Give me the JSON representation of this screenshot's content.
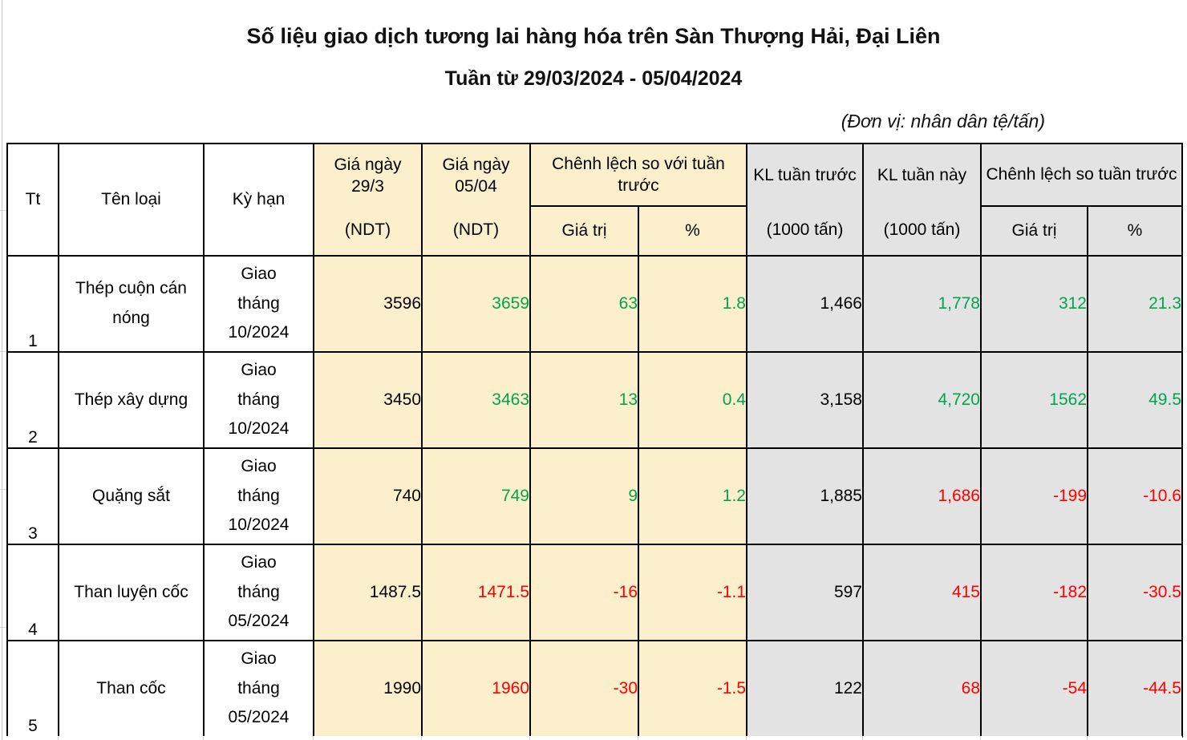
{
  "title": "Số liệu giao dịch tương lai hàng hóa trên Sàn Thượng Hải, Đại Liên",
  "subtitle": "Tuần từ 29/03/2024 - 05/04/2024",
  "unit_note": "(Đơn vị: nhân dân tệ/tấn)",
  "columns": {
    "tt": "Tt",
    "ten_loai": "Tên loại",
    "ky_han": "Kỳ hạn",
    "gia_ngay_29": "Giá ngày 29/3",
    "gia_ngay_05": "Giá ngày 05/04",
    "ndt": "(NDT)",
    "chenh_lech_voi_tuan_truoc": "Chênh lệch so với tuần trước",
    "gia_tri": "Giá trị",
    "pct": "%",
    "kl_tuan_truoc": "KL tuần trước",
    "kl_tuan_nay": "KL tuần này",
    "kl_unit": "(1000 tấn)",
    "chenh_lech_so_tuan_truoc": "Chênh lệch so tuần trước"
  },
  "rows": [
    {
      "tt": "1",
      "name": "Thép cuộn cán nóng",
      "term": "Giao tháng 10/2024",
      "price_29": {
        "v": "3596",
        "c": "black"
      },
      "price_05": {
        "v": "3659",
        "c": "green"
      },
      "diff_val": {
        "v": "63",
        "c": "green"
      },
      "diff_pct": {
        "v": "1.8",
        "c": "green"
      },
      "kl_prev": {
        "v": "1,466",
        "c": "black"
      },
      "kl_this": {
        "v": "1,778",
        "c": "green"
      },
      "kldiff_val": {
        "v": "312",
        "c": "green"
      },
      "kldiff_pct": {
        "v": "21.3",
        "c": "green"
      }
    },
    {
      "tt": "2",
      "name": "Thép xây dựng",
      "term": "Giao tháng 10/2024",
      "price_29": {
        "v": "3450",
        "c": "black"
      },
      "price_05": {
        "v": "3463",
        "c": "green"
      },
      "diff_val": {
        "v": "13",
        "c": "green"
      },
      "diff_pct": {
        "v": "0.4",
        "c": "green"
      },
      "kl_prev": {
        "v": "3,158",
        "c": "black"
      },
      "kl_this": {
        "v": "4,720",
        "c": "green"
      },
      "kldiff_val": {
        "v": "1562",
        "c": "green"
      },
      "kldiff_pct": {
        "v": "49.5",
        "c": "green"
      }
    },
    {
      "tt": "3",
      "name": "Quặng sắt",
      "term": "Giao tháng 10/2024",
      "price_29": {
        "v": "740",
        "c": "black"
      },
      "price_05": {
        "v": "749",
        "c": "green"
      },
      "diff_val": {
        "v": "9",
        "c": "green"
      },
      "diff_pct": {
        "v": "1.2",
        "c": "green"
      },
      "kl_prev": {
        "v": "1,885",
        "c": "black"
      },
      "kl_this": {
        "v": "1,686",
        "c": "red"
      },
      "kldiff_val": {
        "v": "-199",
        "c": "red"
      },
      "kldiff_pct": {
        "v": "-10.6",
        "c": "red"
      }
    },
    {
      "tt": "4",
      "name": "Than luyện cốc",
      "term": "Giao tháng 05/2024",
      "price_29": {
        "v": "1487.5",
        "c": "black"
      },
      "price_05": {
        "v": "1471.5",
        "c": "red"
      },
      "diff_val": {
        "v": "-16",
        "c": "red"
      },
      "diff_pct": {
        "v": "-1.1",
        "c": "red"
      },
      "kl_prev": {
        "v": "597",
        "c": "black"
      },
      "kl_this": {
        "v": "415",
        "c": "red"
      },
      "kldiff_val": {
        "v": "-182",
        "c": "red"
      },
      "kldiff_pct": {
        "v": "-30.5",
        "c": "red"
      }
    },
    {
      "tt": "5",
      "name": "Than cốc",
      "term": "Giao tháng 05/2024",
      "price_29": {
        "v": "1990",
        "c": "black"
      },
      "price_05": {
        "v": "1960",
        "c": "red"
      },
      "diff_val": {
        "v": "-30",
        "c": "red"
      },
      "diff_pct": {
        "v": "-1.5",
        "c": "red"
      },
      "kl_prev": {
        "v": "122",
        "c": "black"
      },
      "kl_this": {
        "v": "68",
        "c": "red"
      },
      "kldiff_val": {
        "v": "-54",
        "c": "red"
      },
      "kldiff_pct": {
        "v": "-44.5",
        "c": "red"
      }
    }
  ],
  "colors": {
    "green": "#00A550",
    "red": "#FF0000",
    "black": "#000000",
    "yellow_bg": "#FCEFCB",
    "gray_bg": "#E3E3E3",
    "border": "#000000"
  }
}
